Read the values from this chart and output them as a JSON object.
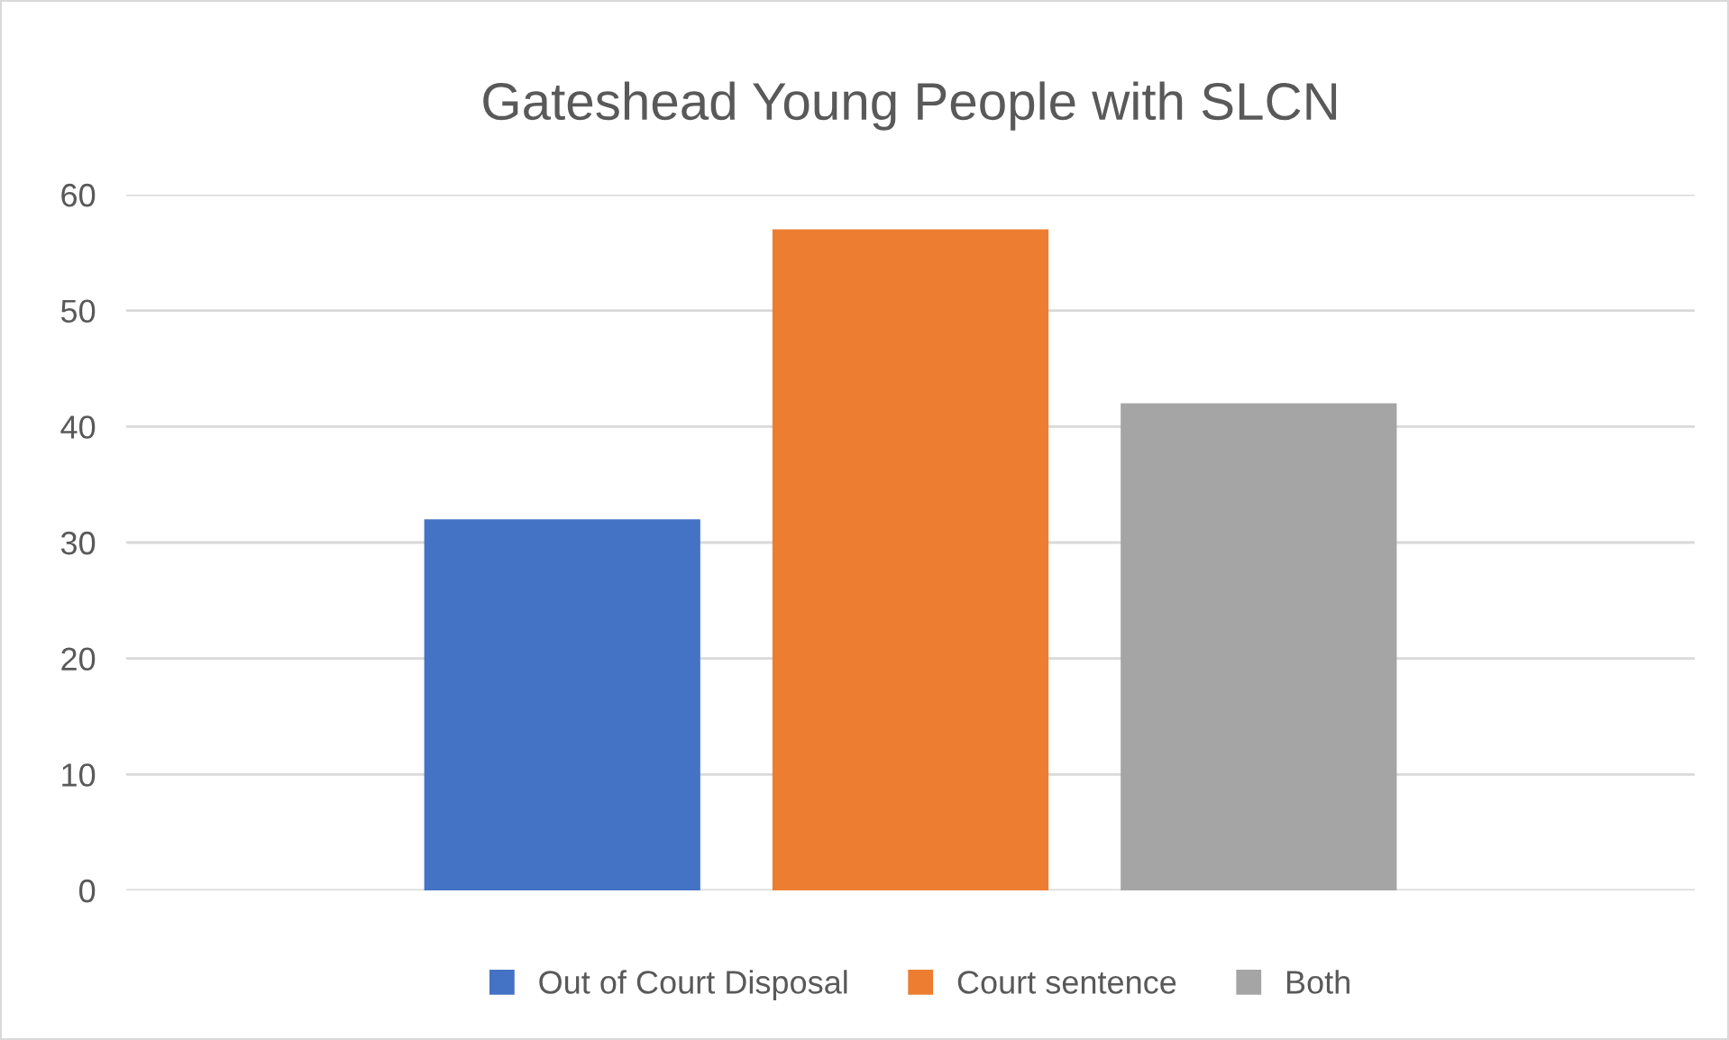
{
  "chart_data": {
    "type": "bar",
    "title": "Gateshead Young People with SLCN",
    "categories": [
      null
    ],
    "series": [
      {
        "name": "Out of Court Disposal",
        "color": "#4472c4",
        "values": [
          32
        ]
      },
      {
        "name": "Court sentence",
        "color": "#ed7d31",
        "values": [
          57
        ]
      },
      {
        "name": "Both",
        "color": "#a5a5a5",
        "values": [
          42
        ]
      }
    ],
    "ylim": [
      0,
      60
    ],
    "yticks": [
      0,
      10,
      20,
      30,
      40,
      50,
      60
    ],
    "grid": "y",
    "legend": "bottom"
  }
}
